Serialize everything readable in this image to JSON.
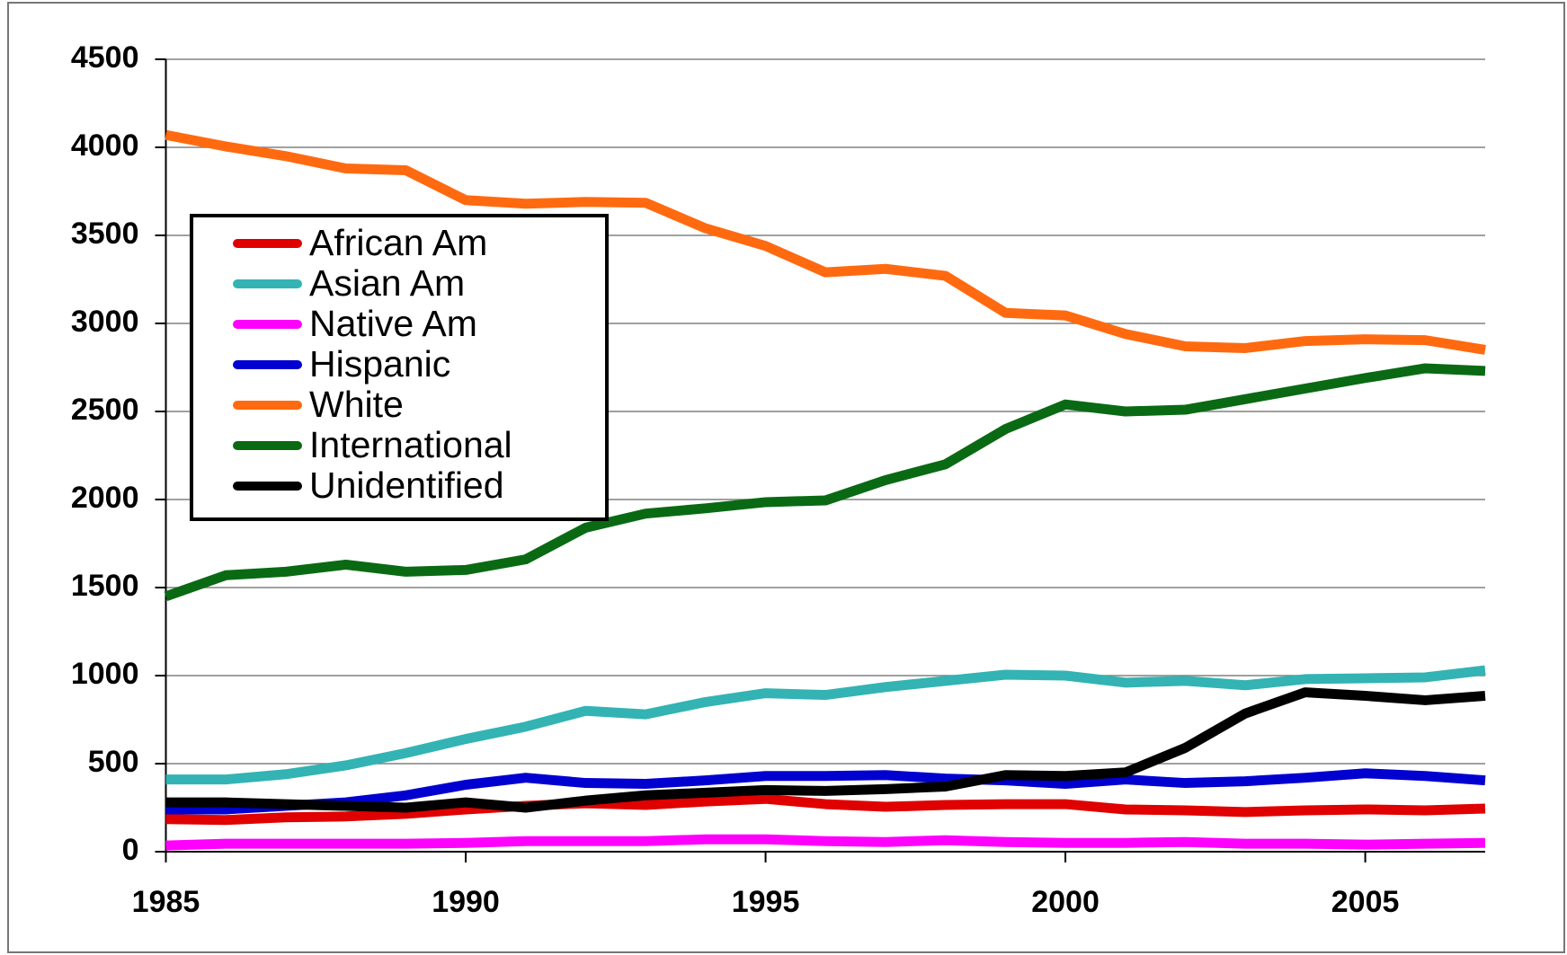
{
  "chart_data": {
    "type": "line",
    "x": [
      1985,
      1986,
      1987,
      1988,
      1989,
      1990,
      1991,
      1992,
      1993,
      1994,
      1995,
      1996,
      1997,
      1998,
      1999,
      2000,
      2001,
      2002,
      2003,
      2004,
      2005,
      2006,
      2007
    ],
    "series": [
      {
        "name": "African Am",
        "color": "#e00000",
        "values": [
          185,
          180,
          195,
          200,
          215,
          240,
          260,
          275,
          265,
          285,
          300,
          270,
          255,
          265,
          270,
          270,
          240,
          235,
          225,
          235,
          240,
          235,
          245
        ]
      },
      {
        "name": "Asian Am",
        "color": "#33b3b3",
        "values": [
          410,
          410,
          440,
          490,
          560,
          640,
          710,
          800,
          780,
          850,
          900,
          890,
          935,
          970,
          1005,
          1000,
          960,
          970,
          945,
          980,
          985,
          990,
          1030
        ]
      },
      {
        "name": "Native Am",
        "color": "#ff00ff",
        "values": [
          35,
          45,
          45,
          45,
          45,
          50,
          60,
          60,
          60,
          70,
          70,
          60,
          55,
          65,
          55,
          50,
          50,
          55,
          45,
          45,
          40,
          45,
          50
        ]
      },
      {
        "name": "Hispanic",
        "color": "#0000d0",
        "values": [
          240,
          240,
          260,
          280,
          320,
          380,
          420,
          390,
          385,
          405,
          430,
          430,
          435,
          415,
          405,
          385,
          410,
          390,
          400,
          420,
          445,
          430,
          405
        ]
      },
      {
        "name": "White",
        "color": "#ff6a10",
        "values": [
          4070,
          4005,
          3950,
          3880,
          3870,
          3700,
          3680,
          3690,
          3685,
          3540,
          3440,
          3290,
          3310,
          3270,
          3060,
          3045,
          2940,
          2870,
          2860,
          2900,
          2910,
          2905,
          2850
        ]
      },
      {
        "name": "International",
        "color": "#0a6a14",
        "values": [
          1450,
          1570,
          1590,
          1630,
          1590,
          1600,
          1660,
          1840,
          1920,
          1950,
          1985,
          1995,
          2110,
          2200,
          2400,
          2540,
          2500,
          2510,
          2570,
          2630,
          2690,
          2745,
          2730
        ]
      },
      {
        "name": "Unidentified",
        "color": "#000000",
        "values": [
          280,
          280,
          270,
          260,
          250,
          280,
          250,
          290,
          320,
          335,
          350,
          345,
          355,
          370,
          435,
          430,
          450,
          590,
          785,
          905,
          885,
          860,
          885
        ]
      }
    ],
    "xlim": [
      1985,
      2007
    ],
    "xticks": [
      1985,
      1990,
      1995,
      2000,
      2005
    ],
    "ylim": [
      0,
      4500
    ],
    "yticks": [
      0,
      500,
      1000,
      1500,
      2000,
      2500,
      3000,
      3500,
      4000,
      4500
    ],
    "grid": true,
    "legend": "upper left"
  }
}
